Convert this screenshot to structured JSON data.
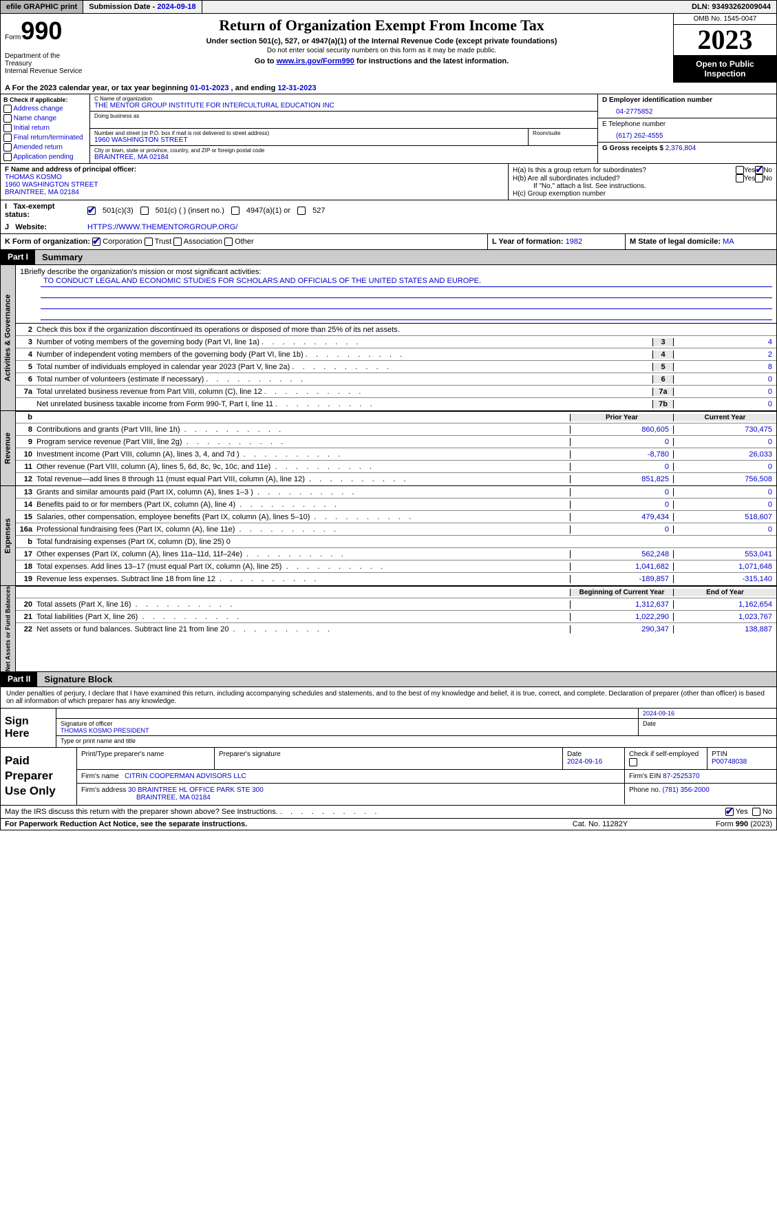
{
  "top": {
    "efile": "efile GRAPHIC print",
    "sub_label": "Submission Date - ",
    "sub_date": "2024-09-18",
    "dln_label": "DLN: ",
    "dln": "93493262009044"
  },
  "header": {
    "form_word": "Form",
    "form_num": "990",
    "dept": "Department of the Treasury\nInternal Revenue Service",
    "title": "Return of Organization Exempt From Income Tax",
    "sub": "Under section 501(c), 527, or 4947(a)(1) of the Internal Revenue Code (except private foundations)",
    "sub2": "Do not enter social security numbers on this form as it may be made public.",
    "link_pre": "Go to ",
    "link_url": "www.irs.gov/Form990",
    "link_post": " for instructions and the latest information.",
    "omb": "OMB No. 1545-0047",
    "year": "2023",
    "open": "Open to Public Inspection"
  },
  "row_a": {
    "text": "For the 2023 calendar year, or tax year beginning ",
    "d1": "01-01-2023",
    "mid": "   , and ending ",
    "d2": "12-31-2023"
  },
  "col_b": {
    "hdr": "B Check if applicable:",
    "items": [
      "Address change",
      "Name change",
      "Initial return",
      "Final return/terminated",
      "Amended return",
      "Application pending"
    ]
  },
  "col_c": {
    "name_lbl": "C Name of organization",
    "name": "THE MENTOR GROUP INSTITUTE FOR INTERCULTURAL EDUCATION INC",
    "dba_lbl": "Doing business as",
    "addr_lbl": "Number and street (or P.O. box if mail is not delivered to street address)",
    "addr": "1960 WASHINGTON STREET",
    "room_lbl": "Room/suite",
    "city_lbl": "City or town, state or province, country, and ZIP or foreign postal code",
    "city": "BRAINTREE, MA  02184"
  },
  "col_d": {
    "ein_lbl": "D Employer identification number",
    "ein": "04-2775852",
    "tel_lbl": "E Telephone number",
    "tel": "(617) 262-4555",
    "gross_lbl": "G Gross receipts $ ",
    "gross": "2,376,804"
  },
  "row_f": {
    "lbl": "F  Name and address of principal officer:",
    "name": "THOMAS KOSMO",
    "addr": "1960 WASHINGTON STREET",
    "city": "BRAINTREE, MA  02184",
    "ha": "H(a)  Is this a group return for subordinates?",
    "hb": "H(b)  Are all subordinates included?",
    "hb_note": "If \"No,\" attach a list. See instructions.",
    "hc": "H(c)  Group exemption number"
  },
  "row_i": {
    "lbl": "Tax-exempt status:",
    "o1": "501(c)(3)",
    "o2": "501(c) (   ) (insert no.)",
    "o3": "4947(a)(1) or",
    "o4": "527"
  },
  "row_j": {
    "lbl": "Website:",
    "val": "HTTPS://WWW.THEMENTORGROUP.ORG/"
  },
  "row_k": {
    "lbl": "K Form of organization:",
    "o1": "Corporation",
    "o2": "Trust",
    "o3": "Association",
    "o4": "Other",
    "l": "L Year of formation: ",
    "l_val": "1982",
    "m": "M State of legal domicile: ",
    "m_val": "MA"
  },
  "parts": {
    "p1": "Part I",
    "p1t": "Summary",
    "p2": "Part II",
    "p2t": "Signature Block"
  },
  "summary": {
    "l1_lbl": "Briefly describe the organization's mission or most significant activities:",
    "l1_val": "TO CONDUCT LEGAL AND ECONOMIC STUDIES FOR SCHOLARS AND OFFICIALS OF THE UNITED STATES AND EUROPE.",
    "l2": "Check this box      if the organization discontinued its operations or disposed of more than 25% of its net assets.",
    "lines_gov": [
      {
        "n": "3",
        "d": "Number of voting members of the governing body (Part VI, line 1a)",
        "b": "3",
        "v": "4"
      },
      {
        "n": "4",
        "d": "Number of independent voting members of the governing body (Part VI, line 1b)",
        "b": "4",
        "v": "2"
      },
      {
        "n": "5",
        "d": "Total number of individuals employed in calendar year 2023 (Part V, line 2a)",
        "b": "5",
        "v": "8"
      },
      {
        "n": "6",
        "d": "Total number of volunteers (estimate if necessary)",
        "b": "6",
        "v": "0"
      },
      {
        "n": "7a",
        "d": "Total unrelated business revenue from Part VIII, column (C), line 12",
        "b": "7a",
        "v": "0"
      },
      {
        "n": "",
        "d": "Net unrelated business taxable income from Form 990-T, Part I, line 11",
        "b": "7b",
        "v": "0"
      }
    ],
    "hdr_rev": {
      "b": "b",
      "py": "Prior Year",
      "cy": "Current Year"
    },
    "lines_rev": [
      {
        "n": "8",
        "d": "Contributions and grants (Part VIII, line 1h)",
        "py": "860,605",
        "cy": "730,475"
      },
      {
        "n": "9",
        "d": "Program service revenue (Part VIII, line 2g)",
        "py": "0",
        "cy": "0"
      },
      {
        "n": "10",
        "d": "Investment income (Part VIII, column (A), lines 3, 4, and 7d )",
        "py": "-8,780",
        "cy": "26,033"
      },
      {
        "n": "11",
        "d": "Other revenue (Part VIII, column (A), lines 5, 6d, 8c, 9c, 10c, and 11e)",
        "py": "0",
        "cy": "0"
      },
      {
        "n": "12",
        "d": "Total revenue—add lines 8 through 11 (must equal Part VIII, column (A), line 12)",
        "py": "851,825",
        "cy": "756,508"
      }
    ],
    "lines_exp": [
      {
        "n": "13",
        "d": "Grants and similar amounts paid (Part IX, column (A), lines 1–3 )",
        "py": "0",
        "cy": "0"
      },
      {
        "n": "14",
        "d": "Benefits paid to or for members (Part IX, column (A), line 4)",
        "py": "0",
        "cy": "0"
      },
      {
        "n": "15",
        "d": "Salaries, other compensation, employee benefits (Part IX, column (A), lines 5–10)",
        "py": "479,434",
        "cy": "518,607"
      },
      {
        "n": "16a",
        "d": "Professional fundraising fees (Part IX, column (A), line 11e)",
        "py": "0",
        "cy": "0"
      },
      {
        "n": "b",
        "d": "Total fundraising expenses (Part IX, column (D), line 25) 0",
        "py": "",
        "cy": "",
        "gray": true
      },
      {
        "n": "17",
        "d": "Other expenses (Part IX, column (A), lines 11a–11d, 11f–24e)",
        "py": "562,248",
        "cy": "553,041"
      },
      {
        "n": "18",
        "d": "Total expenses. Add lines 13–17 (must equal Part IX, column (A), line 25)",
        "py": "1,041,682",
        "cy": "1,071,648"
      },
      {
        "n": "19",
        "d": "Revenue less expenses. Subtract line 18 from line 12",
        "py": "-189,857",
        "cy": "-315,140"
      }
    ],
    "hdr_na": {
      "py": "Beginning of Current Year",
      "cy": "End of Year"
    },
    "lines_na": [
      {
        "n": "20",
        "d": "Total assets (Part X, line 16)",
        "py": "1,312,637",
        "cy": "1,162,654"
      },
      {
        "n": "21",
        "d": "Total liabilities (Part X, line 26)",
        "py": "1,022,290",
        "cy": "1,023,767"
      },
      {
        "n": "22",
        "d": "Net assets or fund balances. Subtract line 21 from line 20",
        "py": "290,347",
        "cy": "138,887"
      }
    ],
    "vtabs": {
      "gov": "Activities & Governance",
      "rev": "Revenue",
      "exp": "Expenses",
      "na": "Net Assets or Fund Balances"
    }
  },
  "sig": {
    "text": "Under penalties of perjury, I declare that I have examined this return, including accompanying schedules and statements, and to the best of my knowledge and belief, it is true, correct, and complete. Declaration of preparer (other than officer) is based on all information of which preparer has any knowledge.",
    "here": "Sign Here",
    "officer_lbl": "Signature of officer",
    "officer": "THOMAS KOSMO PRESIDENT",
    "type_lbl": "Type or print name and title",
    "date_lbl": "Date",
    "date": "2024-09-16"
  },
  "paid": {
    "lbl": "Paid Preparer Use Only",
    "r1": {
      "c1": "Print/Type preparer's name",
      "c2": "Preparer's signature",
      "c3": "Date",
      "c3v": "2024-09-16",
      "c4": "Check       if self-employed",
      "c5": "PTIN",
      "c5v": "P00748038"
    },
    "r2": {
      "c1": "Firm's name",
      "c1v": "CITRIN COOPERMAN ADVISORS LLC",
      "c2": "Firm's EIN ",
      "c2v": "87-2525370"
    },
    "r3": {
      "c1": "Firm's address",
      "c1v": "30 BRAINTREE HL OFFICE PARK STE 300",
      "c1v2": "BRAINTREE, MA  02184",
      "c2": "Phone no. ",
      "c2v": "(781) 356-2000"
    }
  },
  "bottom": {
    "q": "May the IRS discuss this return with the preparer shown above? See Instructions.",
    "yes": "Yes",
    "no": "No"
  },
  "footer": {
    "l": "For Paperwork Reduction Act Notice, see the separate instructions.",
    "m": "Cat. No. 11282Y",
    "r": "Form 990 (2023)"
  }
}
